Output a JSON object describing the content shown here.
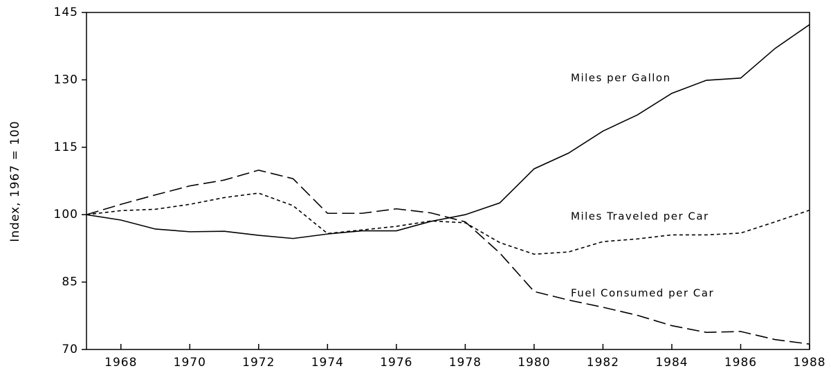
{
  "chart_data": {
    "type": "line",
    "y_label": "Index, 1967 = 100",
    "x": [
      1967,
      1968,
      1969,
      1970,
      1971,
      1972,
      1973,
      1974,
      1975,
      1976,
      1977,
      1978,
      1979,
      1980,
      1981,
      1982,
      1983,
      1984,
      1985,
      1986,
      1987,
      1988
    ],
    "series": [
      {
        "name": "Miles per Gallon",
        "color": "#000000",
        "dash": "solid",
        "values": [
          100,
          98.8,
          96.8,
          96.2,
          96.3,
          95.4,
          94.7,
          95.7,
          96.4,
          96.4,
          98.5,
          100,
          102.6,
          110.2,
          113.7,
          118.6,
          122.2,
          127,
          129.9,
          130.4,
          137,
          142.3
        ]
      },
      {
        "name": "Miles Traveled per Car",
        "color": "#000000",
        "dash": "short",
        "values": [
          100,
          100.9,
          101.2,
          102.3,
          103.8,
          104.8,
          102,
          95.8,
          96.6,
          97.4,
          98.6,
          98.2,
          93.8,
          91.2,
          91.7,
          94,
          94.6,
          95.5,
          95.5,
          95.9,
          98.4,
          101
        ]
      },
      {
        "name": "Fuel Consumed per Car",
        "color": "#000000",
        "dash": "long",
        "values": [
          100,
          102.3,
          104.4,
          106.4,
          107.7,
          109.9,
          108,
          100.3,
          100.3,
          101.3,
          100.4,
          98.4,
          91.5,
          82.9,
          81,
          79.4,
          77.6,
          75.3,
          73.8,
          74,
          72.2,
          71.2
        ]
      }
    ],
    "xlim": [
      1967,
      1988
    ],
    "xticks": [
      1968,
      1970,
      1972,
      1974,
      1976,
      1978,
      1980,
      1982,
      1984,
      1986,
      1988
    ],
    "ylim": [
      70,
      145
    ],
    "yticks": [
      70,
      85,
      100,
      115,
      130,
      145
    ]
  }
}
